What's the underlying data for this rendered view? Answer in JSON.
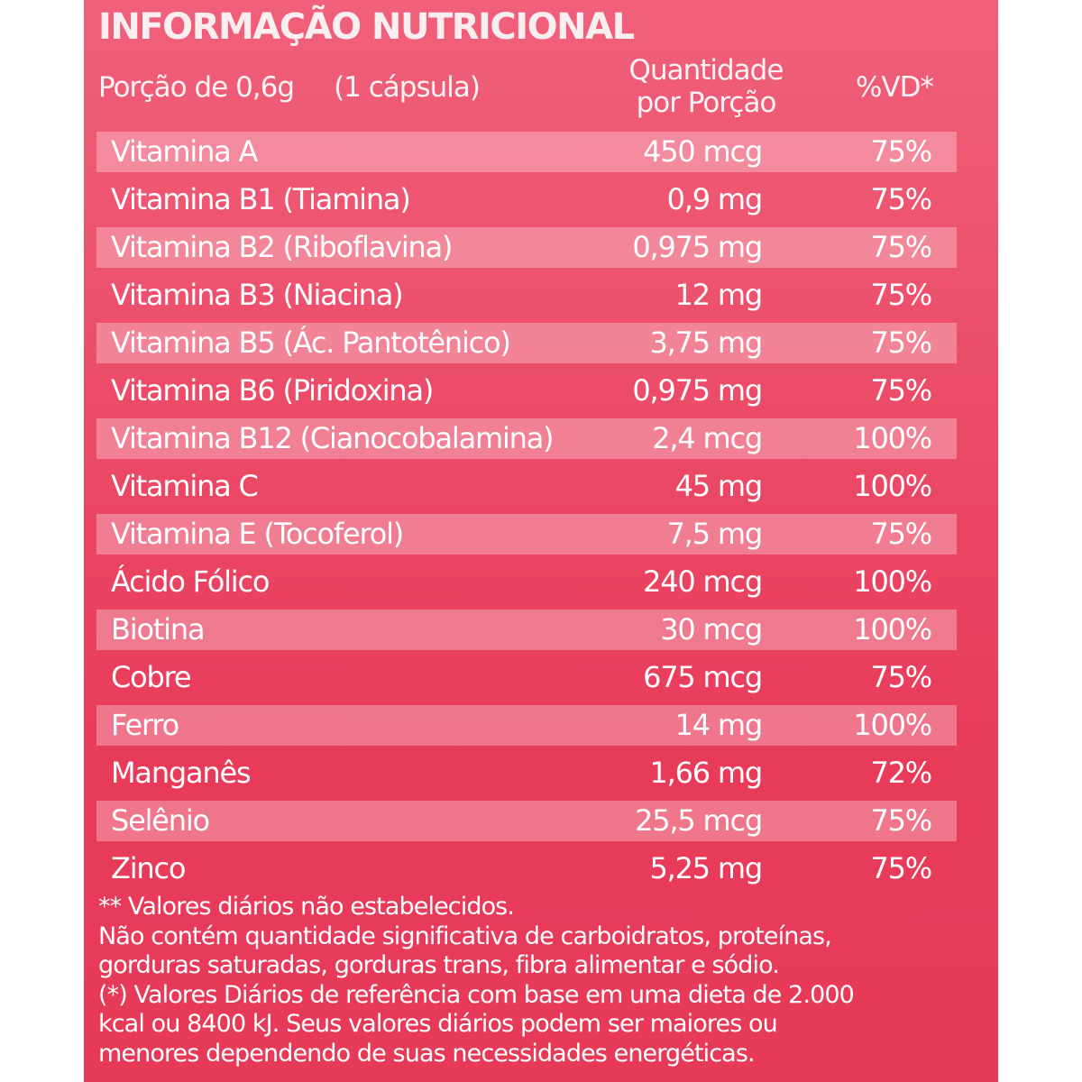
{
  "label": {
    "title": "INFORMAÇÃO NUTRICIONAL",
    "serving_size": "Porção de 0,6g",
    "serving_unit": "(1 cápsula)",
    "col_amount_line1": "Quantidade",
    "col_amount_line2": "por Porção",
    "col_dv": "%VD*",
    "rows": [
      {
        "name": "Vitamina A",
        "amount": "450 mcg",
        "dv": "75%"
      },
      {
        "name": "Vitamina B1 (Tiamina)",
        "amount": "0,9 mg",
        "dv": "75%"
      },
      {
        "name": "Vitamina B2 (Riboflavina)",
        "amount": "0,975 mg",
        "dv": "75%"
      },
      {
        "name": "Vitamina B3 (Niacina)",
        "amount": "12 mg",
        "dv": "75%"
      },
      {
        "name": "Vitamina B5 (Ác. Pantotênico)",
        "amount": "3,75 mg",
        "dv": "75%"
      },
      {
        "name": "Vitamina B6 (Piridoxina)",
        "amount": "0,975 mg",
        "dv": "75%"
      },
      {
        "name": "Vitamina B12 (Cianocobalamina)",
        "amount": "2,4 mcg",
        "dv": "100%"
      },
      {
        "name": "Vitamina C",
        "amount": "45 mg",
        "dv": "100%"
      },
      {
        "name": "Vitamina E (Tocoferol)",
        "amount": "7,5 mg",
        "dv": "75%"
      },
      {
        "name": "Ácido Fólico",
        "amount": "240 mcg",
        "dv": "100%"
      },
      {
        "name": "Biotina",
        "amount": "30 mcg",
        "dv": "100%"
      },
      {
        "name": "Cobre",
        "amount": "675 mcg",
        "dv": "75%"
      },
      {
        "name": "Ferro",
        "amount": "14 mg",
        "dv": "100%"
      },
      {
        "name": "Manganês",
        "amount": "1,66 mg",
        "dv": "72%"
      },
      {
        "name": "Selênio",
        "amount": "25,5 mcg",
        "dv": "75%"
      },
      {
        "name": "Zinco",
        "amount": "5,25 mg",
        "dv": "75%"
      }
    ],
    "footnotes": [
      "** Valores  diários  não estabelecidos.",
      "Não contém quantidade significativa de carboidratos, proteínas,",
      "gorduras saturadas, gorduras trans, fibra alimentar e sódio.",
      "(*) Valores Diários de referência com base em uma dieta de 2.000",
      "kcal ou 8400 kJ. Seus valores diários podem ser maiores ou",
      "menores dependendo de suas necessidades energéticas."
    ]
  }
}
